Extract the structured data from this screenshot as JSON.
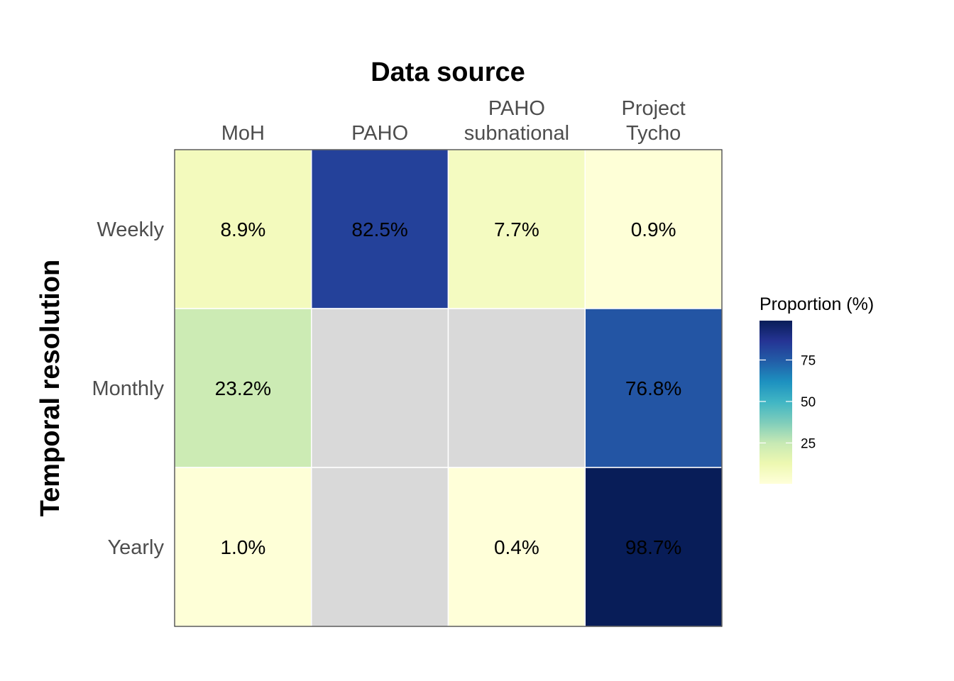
{
  "chart_data": {
    "type": "heatmap",
    "title": "Data source",
    "xlabel": "Data source",
    "ylabel": "Temporal resolution",
    "columns": [
      [
        "MoH"
      ],
      [
        "PAHO"
      ],
      [
        "PAHO",
        "subnational"
      ],
      [
        "Project",
        "Tycho"
      ]
    ],
    "rows": [
      "Weekly",
      "Monthly",
      "Yearly"
    ],
    "values": [
      [
        8.9,
        82.5,
        7.7,
        0.9
      ],
      [
        23.2,
        null,
        null,
        76.8
      ],
      [
        1.0,
        null,
        0.4,
        98.7
      ]
    ],
    "labels": [
      [
        "8.9%",
        "82.5%",
        "7.7%",
        "0.9%"
      ],
      [
        "23.2%",
        "",
        "",
        "76.8%"
      ],
      [
        "1.0%",
        "",
        "0.4%",
        "98.7%"
      ]
    ],
    "na_color": "#d9d9d9",
    "legend": {
      "title": "Proportion (%)",
      "ticks": [
        25,
        50,
        75
      ],
      "range": [
        0.4,
        98.7
      ],
      "palette": [
        "#ffffd9",
        "#edf8b1",
        "#c7e9b4",
        "#7fcdbb",
        "#41b6c4",
        "#1d91c0",
        "#225ea8",
        "#253494",
        "#081d58"
      ],
      "placement": "right"
    }
  }
}
